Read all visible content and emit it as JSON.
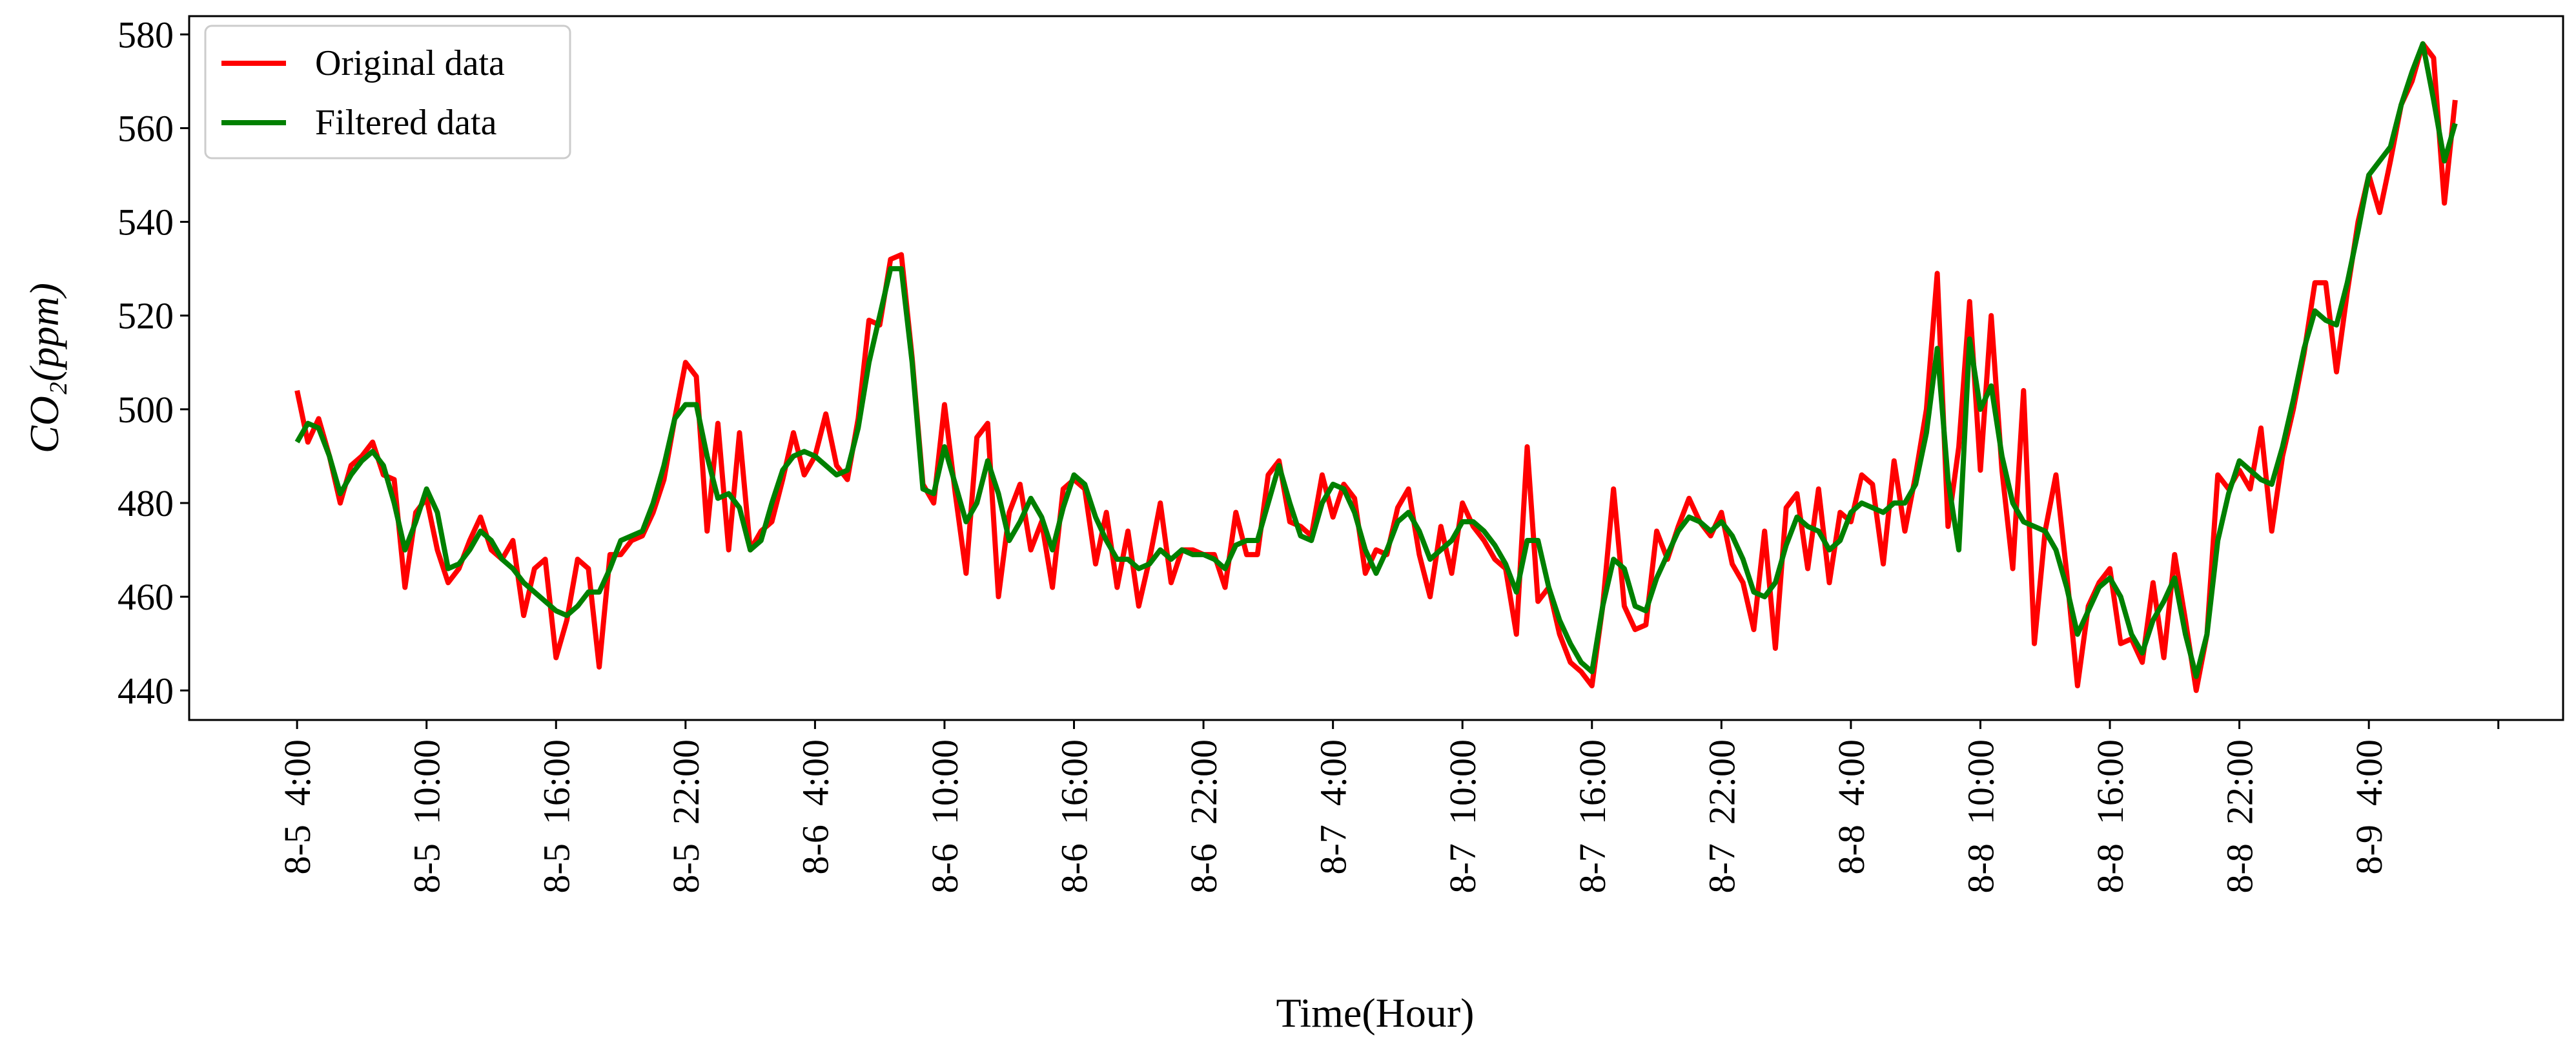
{
  "chart_data": {
    "type": "line",
    "x_label": "Time(Hour)",
    "y_label": "CO₂(ppm)",
    "xlim": [
      -5,
      105
    ],
    "ylim": [
      433.7,
      583.9
    ],
    "yticks": [
      440,
      460,
      480,
      500,
      520,
      540,
      560,
      580
    ],
    "xticks": [
      {
        "value": 0,
        "label": "8-5  4:00"
      },
      {
        "value": 6,
        "label": "8-5  10:00"
      },
      {
        "value": 12,
        "label": "8-5  16:00"
      },
      {
        "value": 18,
        "label": "8-5  22:00"
      },
      {
        "value": 24,
        "label": "8-6  4:00"
      },
      {
        "value": 30,
        "label": "8-6  10:00"
      },
      {
        "value": 36,
        "label": "8-6  16:00"
      },
      {
        "value": 42,
        "label": "8-6  22:00"
      },
      {
        "value": 48,
        "label": "8-7  4:00"
      },
      {
        "value": 54,
        "label": "8-7  10:00"
      },
      {
        "value": 60,
        "label": "8-7  16:00"
      },
      {
        "value": 66,
        "label": "8-7  22:00"
      },
      {
        "value": 72,
        "label": "8-8  4:00"
      },
      {
        "value": 78,
        "label": "8-8  10:00"
      },
      {
        "value": 84,
        "label": "8-8  16:00"
      },
      {
        "value": 90,
        "label": "8-8  22:00"
      },
      {
        "value": 96,
        "label": "8-9  4:00"
      },
      {
        "value": 102,
        "label": null
      }
    ],
    "legend": "upper left",
    "x": [
      0,
      0.5,
      1,
      1.5,
      2,
      2.5,
      3,
      3.5,
      4,
      4.5,
      5,
      5.5,
      6,
      6.5,
      7,
      7.5,
      8,
      8.5,
      9,
      9.5,
      10,
      10.5,
      11,
      11.5,
      12,
      12.5,
      13,
      13.5,
      14,
      14.5,
      15,
      15.5,
      16,
      16.5,
      17,
      17.5,
      18,
      18.5,
      19,
      19.5,
      20,
      20.5,
      21,
      21.5,
      22,
      22.5,
      23,
      23.5,
      24,
      24.5,
      25,
      25.5,
      26,
      26.5,
      27,
      27.5,
      28,
      28.5,
      29,
      29.5,
      30,
      30.5,
      31,
      31.5,
      32,
      32.5,
      33,
      33.5,
      34,
      34.5,
      35,
      35.5,
      36,
      36.5,
      37,
      37.5,
      38,
      38.5,
      39,
      39.5,
      40,
      40.5,
      41,
      41.5,
      42,
      42.5,
      43,
      43.5,
      44,
      44.5,
      45,
      45.5,
      46,
      46.5,
      47,
      47.5,
      48,
      48.5,
      49,
      49.5,
      50,
      50.5,
      51,
      51.5,
      52,
      52.5,
      53,
      53.5,
      54,
      54.5,
      55,
      55.5,
      56,
      56.5,
      57,
      57.5,
      58,
      58.5,
      59,
      59.5,
      60,
      60.5,
      61,
      61.5,
      62,
      62.5,
      63,
      63.5,
      64,
      64.5,
      65,
      65.5,
      66,
      66.5,
      67,
      67.5,
      68,
      68.5,
      69,
      69.5,
      70,
      70.5,
      71,
      71.5,
      72,
      72.5,
      73,
      73.5,
      74,
      74.5,
      75,
      75.5,
      76,
      76.5,
      77,
      77.5,
      78,
      78.5,
      79,
      79.5,
      80,
      80.5,
      81,
      81.5,
      82,
      82.5,
      83,
      83.5,
      84,
      84.5,
      85,
      85.5,
      86,
      86.5,
      87,
      87.5,
      88,
      88.5,
      89,
      89.5,
      90,
      90.5,
      91,
      91.5,
      92,
      92.5,
      93,
      93.5,
      94,
      94.5,
      95,
      95.5,
      96,
      96.5,
      97,
      97.5,
      98,
      98.5,
      99,
      99.5,
      100
    ],
    "series": [
      {
        "name": "Original data",
        "color": "#ff0000",
        "values": [
          504,
          493,
          498,
          490,
          480,
          488,
          490,
          493,
          486,
          485,
          462,
          478,
          481,
          470,
          463,
          466,
          472,
          477,
          470,
          468,
          472,
          456,
          466,
          468,
          447,
          455,
          468,
          466,
          445,
          469,
          469,
          472,
          473,
          478,
          485,
          498,
          510,
          507,
          474,
          497,
          470,
          495,
          470,
          474,
          476,
          485,
          495,
          486,
          490,
          499,
          488,
          485,
          498,
          519,
          518,
          532,
          533,
          511,
          484,
          480,
          501,
          482,
          465,
          494,
          497,
          460,
          478,
          484,
          470,
          476,
          462,
          483,
          485,
          483,
          467,
          478,
          462,
          474,
          458,
          468,
          480,
          463,
          470,
          470,
          469,
          469,
          462,
          478,
          469,
          469,
          486,
          489,
          476,
          475,
          473,
          486,
          477,
          484,
          481,
          465,
          470,
          469,
          479,
          483,
          469,
          460,
          475,
          465,
          480,
          475,
          472,
          468,
          466,
          452,
          492,
          459,
          462,
          452,
          446,
          444,
          441,
          458,
          483,
          458,
          453,
          454,
          474,
          468,
          475,
          481,
          476,
          473,
          478,
          467,
          463,
          453,
          474,
          449,
          479,
          482,
          466,
          483,
          463,
          478,
          476,
          486,
          484,
          467,
          489,
          474,
          486,
          500,
          529,
          475,
          492,
          523,
          487,
          520,
          487,
          466,
          504,
          450,
          474,
          486,
          465,
          441,
          458,
          463,
          466,
          450,
          451,
          446,
          463,
          447,
          469,
          455,
          440,
          452,
          486,
          483,
          487,
          483,
          496,
          474,
          490,
          500,
          512,
          527,
          527,
          508,
          525,
          540,
          550,
          542,
          553,
          565,
          570,
          578,
          575,
          544,
          566
        ]
      },
      {
        "name": "Filtered data",
        "color": "#008000",
        "values": [
          493,
          497,
          496,
          490,
          482,
          486,
          489,
          491,
          488,
          480,
          470,
          476,
          483,
          478,
          466,
          467,
          470,
          474,
          472,
          468,
          466,
          463,
          461,
          459,
          457,
          456,
          458,
          461,
          461,
          466,
          472,
          473,
          474,
          480,
          488,
          498,
          501,
          501,
          490,
          481,
          482,
          479,
          470,
          472,
          480,
          487,
          490,
          491,
          490,
          488,
          486,
          487,
          496,
          510,
          520,
          530,
          530,
          510,
          483,
          482,
          492,
          484,
          476,
          480,
          489,
          482,
          472,
          476,
          481,
          477,
          470,
          479,
          486,
          484,
          477,
          472,
          468,
          468,
          466,
          467,
          470,
          468,
          470,
          469,
          469,
          468,
          466,
          471,
          472,
          472,
          480,
          488,
          480,
          473,
          472,
          480,
          484,
          483,
          478,
          470,
          465,
          470,
          476,
          478,
          474,
          468,
          470,
          472,
          476,
          476,
          474,
          471,
          467,
          461,
          472,
          472,
          462,
          455,
          450,
          446,
          444,
          458,
          468,
          466,
          458,
          457,
          464,
          469,
          474,
          477,
          476,
          474,
          476,
          473,
          468,
          461,
          460,
          463,
          471,
          477,
          475,
          474,
          470,
          472,
          478,
          480,
          479,
          478,
          480,
          480,
          484,
          495,
          513,
          485,
          470,
          515,
          500,
          505,
          490,
          480,
          476,
          475,
          474,
          470,
          462,
          452,
          457,
          462,
          464,
          460,
          452,
          448,
          455,
          459,
          464,
          452,
          443,
          452,
          472,
          482,
          489,
          487,
          485,
          484,
          492,
          502,
          513,
          521,
          519,
          518,
          527,
          538,
          550,
          553,
          556,
          565,
          572,
          578,
          566,
          553,
          561
        ]
      }
    ]
  }
}
